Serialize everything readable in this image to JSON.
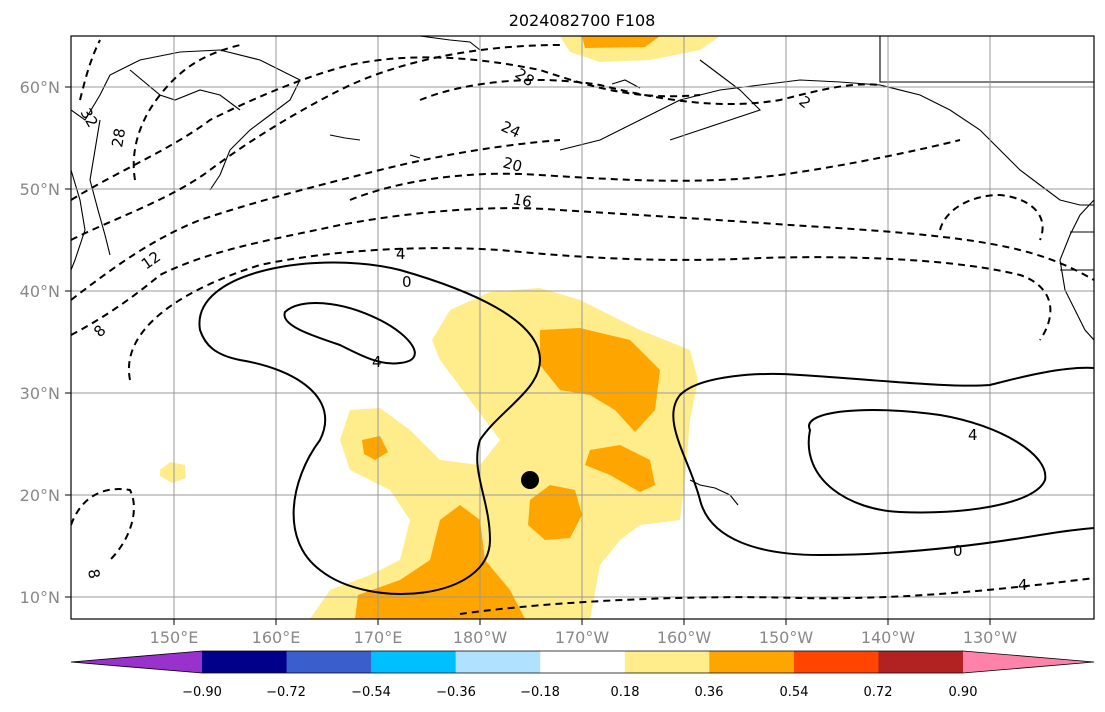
{
  "title": "2024082700 F108",
  "map": {
    "lat_labels": [
      "60°N",
      "50°N",
      "40°N",
      "30°N",
      "20°N",
      "10°N"
    ],
    "lon_labels": [
      "150°E",
      "160°E",
      "170°E",
      "180°W",
      "170°W",
      "160°W",
      "150°W",
      "140°W",
      "130°W"
    ],
    "contour_labels": [
      {
        "text": "32"
      },
      {
        "text": "28"
      },
      {
        "text": "28"
      },
      {
        "text": "24"
      },
      {
        "text": "20"
      },
      {
        "text": "16"
      },
      {
        "text": "12"
      },
      {
        "text": "8"
      },
      {
        "text": "4"
      },
      {
        "text": "0"
      },
      {
        "text": "4"
      },
      {
        "text": "4"
      },
      {
        "text": "0"
      },
      {
        "text": "4"
      },
      {
        "text": "8"
      },
      {
        "text": "2"
      }
    ],
    "marker": "black-dot"
  },
  "colorbar": {
    "colors": [
      "#9932cc",
      "#00008b",
      "#3a5fcd",
      "#00bfff",
      "#b0e2ff",
      "#ffffff",
      "#ffec8b",
      "#ffa500",
      "#ff4500",
      "#b22222",
      "#ff82ab"
    ],
    "tick_labels": [
      "−0.90",
      "−0.72",
      "−0.54",
      "−0.36",
      "−0.18",
      "0.18",
      "0.36",
      "0.54",
      "0.72",
      "0.90"
    ]
  }
}
